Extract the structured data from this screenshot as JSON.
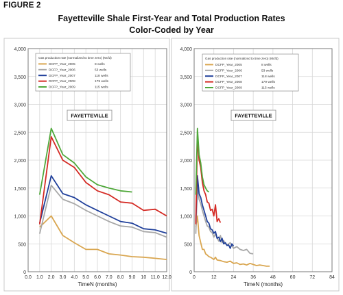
{
  "figure": {
    "label": "FIGURE 2",
    "title": "Fayetteville Shale First-Year and Total Production Rates",
    "subtitle": "Color-Coded by Year"
  },
  "chart_data": [
    {
      "type": "line",
      "annotation": "FAYETTEVILLE",
      "xlabel": "TimeN (months)",
      "xlim": [
        0,
        12
      ],
      "xticks": [
        0.0,
        1.0,
        2.0,
        3.0,
        4.0,
        5.0,
        6.0,
        7.0,
        8.0,
        9.0,
        10.0,
        11.0,
        12.0
      ],
      "xtick_labels": [
        "0.0",
        "1.0",
        "2.0",
        "3.0",
        "4.0",
        "5.0",
        "6.0",
        "7.0",
        "8.0",
        "9.0",
        "10",
        "11.0",
        "12.0"
      ],
      "ylim": [
        0,
        4000
      ],
      "yticks": [
        0,
        500,
        1000,
        1500,
        2000,
        2500,
        3000,
        3500,
        4000
      ],
      "ytick_labels": [
        "0",
        "500",
        "1,000",
        "1,500",
        "2,000",
        "2,500",
        "3,000",
        "3,500",
        "4,000"
      ],
      "grid": true,
      "legend_title": "Gas production rate (normalized to time zero) (Mcfd)",
      "legend_position": "top-left",
      "series": [
        {
          "name": "DCFP_Year_2005",
          "wells": "8 wells",
          "color": "#d9a650",
          "x": [
            1,
            2,
            3,
            4,
            5,
            6,
            7,
            8,
            9,
            10,
            11,
            12
          ],
          "y": [
            800,
            1000,
            650,
            520,
            400,
            400,
            320,
            300,
            270,
            260,
            240,
            220
          ]
        },
        {
          "name": "DCFP_Year_2006",
          "wells": "53 wells",
          "color": "#a8a8a8",
          "x": [
            1,
            2,
            3,
            4,
            5,
            6,
            7,
            8,
            9,
            10,
            11,
            12
          ],
          "y": [
            680,
            1550,
            1300,
            1220,
            1100,
            1000,
            900,
            820,
            800,
            720,
            700,
            620
          ]
        },
        {
          "name": "DCFP_Year_2007",
          "wells": "118 wells",
          "color": "#1f3f9a",
          "x": [
            1,
            2,
            3,
            4,
            5,
            6,
            7,
            8,
            9,
            10,
            11,
            12
          ],
          "y": [
            870,
            1720,
            1400,
            1330,
            1200,
            1100,
            1000,
            900,
            870,
            770,
            750,
            690
          ]
        },
        {
          "name": "DCFP_Year_2008",
          "wells": "179 wells",
          "color": "#d42a24",
          "x": [
            1,
            2,
            3,
            4,
            5,
            6,
            7,
            8,
            9,
            10,
            11,
            12
          ],
          "y": [
            850,
            2420,
            2000,
            1870,
            1600,
            1450,
            1380,
            1250,
            1230,
            1100,
            1120,
            1000
          ]
        },
        {
          "name": "DCFP_Year_2009",
          "wells": "115 wells",
          "color": "#4fa83a",
          "x": [
            1,
            2,
            3,
            4,
            5,
            6,
            7,
            8,
            9
          ],
          "y": [
            1380,
            2570,
            2100,
            1950,
            1700,
            1560,
            1500,
            1450,
            1430
          ]
        }
      ]
    },
    {
      "type": "line",
      "annotation": "FAYETTEVILLE",
      "xlabel": "TimeN (months)",
      "xlim": [
        0,
        84
      ],
      "xticks": [
        0,
        12,
        24,
        36,
        48,
        60,
        72,
        84
      ],
      "xtick_labels": [
        "0",
        "12",
        "24",
        "36",
        "48",
        "60",
        "72",
        "84"
      ],
      "ylim": [
        0,
        4000
      ],
      "yticks": [
        0,
        500,
        1000,
        1500,
        2000,
        2500,
        3000,
        3500,
        4000
      ],
      "ytick_labels": [
        "0",
        "500",
        "1,000",
        "1,500",
        "2,000",
        "2,500",
        "3,000",
        "3,500",
        "4,000"
      ],
      "grid": true,
      "legend_title": "Gas production rate (normalized to time zero) (Mcfd)",
      "legend_position": "top-left",
      "series": [
        {
          "name": "DCFP_Year_2005",
          "wells": "8 wells",
          "color": "#d9a650",
          "x": [
            1,
            2,
            3,
            4,
            5,
            6,
            7,
            8,
            9,
            10,
            11,
            12,
            13,
            14,
            16,
            18,
            20,
            22,
            24,
            26,
            28,
            30,
            32,
            34,
            36,
            38,
            40,
            42,
            44,
            46
          ],
          "y": [
            800,
            1000,
            650,
            520,
            400,
            400,
            320,
            300,
            270,
            260,
            240,
            220,
            260,
            210,
            200,
            180,
            170,
            190,
            150,
            160,
            130,
            140,
            120,
            150,
            130,
            110,
            120,
            110,
            100,
            100
          ]
        },
        {
          "name": "DCFP_Year_2006",
          "wells": "53 wells",
          "color": "#a8a8a8",
          "x": [
            1,
            2,
            3,
            4,
            5,
            6,
            7,
            8,
            9,
            10,
            11,
            12,
            13,
            14,
            15,
            16,
            17,
            18,
            19,
            20,
            22,
            24,
            26,
            28,
            30,
            32,
            34,
            36
          ],
          "y": [
            680,
            1550,
            1300,
            1220,
            1100,
            1000,
            900,
            820,
            800,
            720,
            700,
            620,
            680,
            600,
            550,
            650,
            520,
            560,
            500,
            480,
            520,
            420,
            450,
            400,
            380,
            400,
            330,
            320
          ]
        },
        {
          "name": "DCFP_Year_2007",
          "wells": "118 wells",
          "color": "#1f3f9a",
          "x": [
            1,
            2,
            3,
            4,
            5,
            6,
            7,
            8,
            9,
            10,
            11,
            12,
            13,
            14,
            15,
            16,
            17,
            18,
            19,
            20,
            21,
            22,
            23,
            24
          ],
          "y": [
            870,
            1720,
            1400,
            1330,
            1200,
            1100,
            1000,
            900,
            870,
            770,
            750,
            690,
            720,
            600,
            620,
            540,
            600,
            500,
            520,
            470,
            480,
            420,
            500,
            460
          ]
        },
        {
          "name": "DCFP_Year_2008",
          "wells": "179 wells",
          "color": "#d42a24",
          "x": [
            1,
            2,
            3,
            4,
            5,
            6,
            7,
            8,
            9,
            10,
            11,
            12,
            13,
            14,
            15,
            16
          ],
          "y": [
            850,
            2420,
            2000,
            1870,
            1600,
            1450,
            1380,
            1250,
            1230,
            1100,
            1120,
            1000,
            1200,
            900,
            950,
            880
          ]
        },
        {
          "name": "DCFP_Year_2009",
          "wells": "115 wells",
          "color": "#4fa83a",
          "x": [
            1,
            2,
            3,
            4,
            5,
            6,
            7,
            8,
            9
          ],
          "y": [
            1380,
            2570,
            2100,
            1950,
            1700,
            1560,
            1500,
            1450,
            1430
          ]
        }
      ]
    }
  ]
}
